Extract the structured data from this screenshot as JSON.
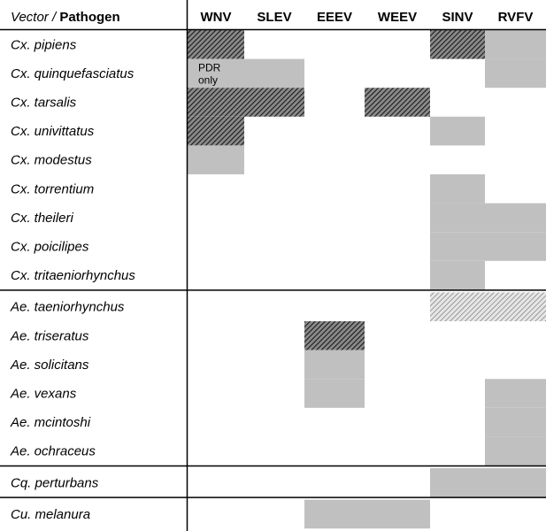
{
  "chart_data": {
    "type": "heatmap",
    "corner_label": {
      "vector": "Vector",
      "separator": " / ",
      "pathogen": "Pathogen"
    },
    "columns": [
      "WNV",
      "SLEV",
      "EEEV",
      "WEEV",
      "SINV",
      "RVFV"
    ],
    "groups": [
      [
        "Cx. pipiens",
        "Cx. quinquefasciatus",
        "Cx. tarsalis",
        "Cx. univittatus",
        "Cx. modestus",
        "Cx. torrentium",
        "Cx. theileri",
        "Cx. poicilipes",
        "Cx. tritaeniorhynchus"
      ],
      [
        "Ae. taeniorhynchus",
        "Ae. triseratus",
        "Ae. solicitans",
        "Ae. vexans",
        "Ae. mcintoshi",
        "Ae. ochraceus"
      ],
      [
        "Cq. perturbans"
      ],
      [
        "Cu. melanura"
      ]
    ],
    "cell_fills": {
      "gray": "#c0c0c0",
      "hatch_dense": "#2a2a2a",
      "hatch_light": "#7a7a7a"
    },
    "cells": [
      {
        "row": "Cx. pipiens",
        "col": "WNV",
        "fill": "hatch_dense"
      },
      {
        "row": "Cx. pipiens",
        "col": "SINV",
        "fill": "hatch_dense"
      },
      {
        "row": "Cx. pipiens",
        "col": "RVFV",
        "fill": "gray"
      },
      {
        "row": "Cx. quinquefasciatus",
        "col": "WNV",
        "fill": "gray"
      },
      {
        "row": "Cx. quinquefasciatus",
        "col": "SLEV",
        "fill": "gray"
      },
      {
        "row": "Cx. quinquefasciatus",
        "col": "RVFV",
        "fill": "gray"
      },
      {
        "row": "Cx. tarsalis",
        "col": "WNV",
        "fill": "hatch_dense"
      },
      {
        "row": "Cx. tarsalis",
        "col": "SLEV",
        "fill": "hatch_dense"
      },
      {
        "row": "Cx. tarsalis",
        "col": "WEEV",
        "fill": "hatch_dense"
      },
      {
        "row": "Cx. univittatus",
        "col": "WNV",
        "fill": "hatch_dense"
      },
      {
        "row": "Cx. univittatus",
        "col": "SINV",
        "fill": "gray"
      },
      {
        "row": "Cx. modestus",
        "col": "WNV",
        "fill": "gray"
      },
      {
        "row": "Cx. torrentium",
        "col": "SINV",
        "fill": "gray"
      },
      {
        "row": "Cx. theileri",
        "col": "SINV",
        "fill": "gray"
      },
      {
        "row": "Cx. theileri",
        "col": "RVFV",
        "fill": "gray"
      },
      {
        "row": "Cx. poicilipes",
        "col": "SINV",
        "fill": "gray"
      },
      {
        "row": "Cx. poicilipes",
        "col": "RVFV",
        "fill": "gray"
      },
      {
        "row": "Cx. tritaeniorhynchus",
        "col": "SINV",
        "fill": "gray"
      },
      {
        "row": "Ae. taeniorhynchus",
        "col": "SINV",
        "fill": "hatch_light"
      },
      {
        "row": "Ae. taeniorhynchus",
        "col": "RVFV",
        "fill": "hatch_light"
      },
      {
        "row": "Ae. triseratus",
        "col": "EEEV",
        "fill": "hatch_dense"
      },
      {
        "row": "Ae. solicitans",
        "col": "EEEV",
        "fill": "gray"
      },
      {
        "row": "Ae. vexans",
        "col": "EEEV",
        "fill": "gray"
      },
      {
        "row": "Ae. vexans",
        "col": "RVFV",
        "fill": "gray"
      },
      {
        "row": "Ae. mcintoshi",
        "col": "RVFV",
        "fill": "gray"
      },
      {
        "row": "Ae. ochraceus",
        "col": "RVFV",
        "fill": "gray"
      },
      {
        "row": "Cq. perturbans",
        "col": "SINV",
        "fill": "gray"
      },
      {
        "row": "Cq. perturbans",
        "col": "RVFV",
        "fill": "gray"
      },
      {
        "row": "Cu. melanura",
        "col": "EEEV",
        "fill": "gray"
      },
      {
        "row": "Cu. melanura",
        "col": "WEEV",
        "fill": "gray"
      }
    ],
    "annotations": [
      {
        "row": "Cx. quinquefasciatus",
        "col": "WNV",
        "lines": [
          "PDR",
          "only"
        ]
      }
    ]
  }
}
